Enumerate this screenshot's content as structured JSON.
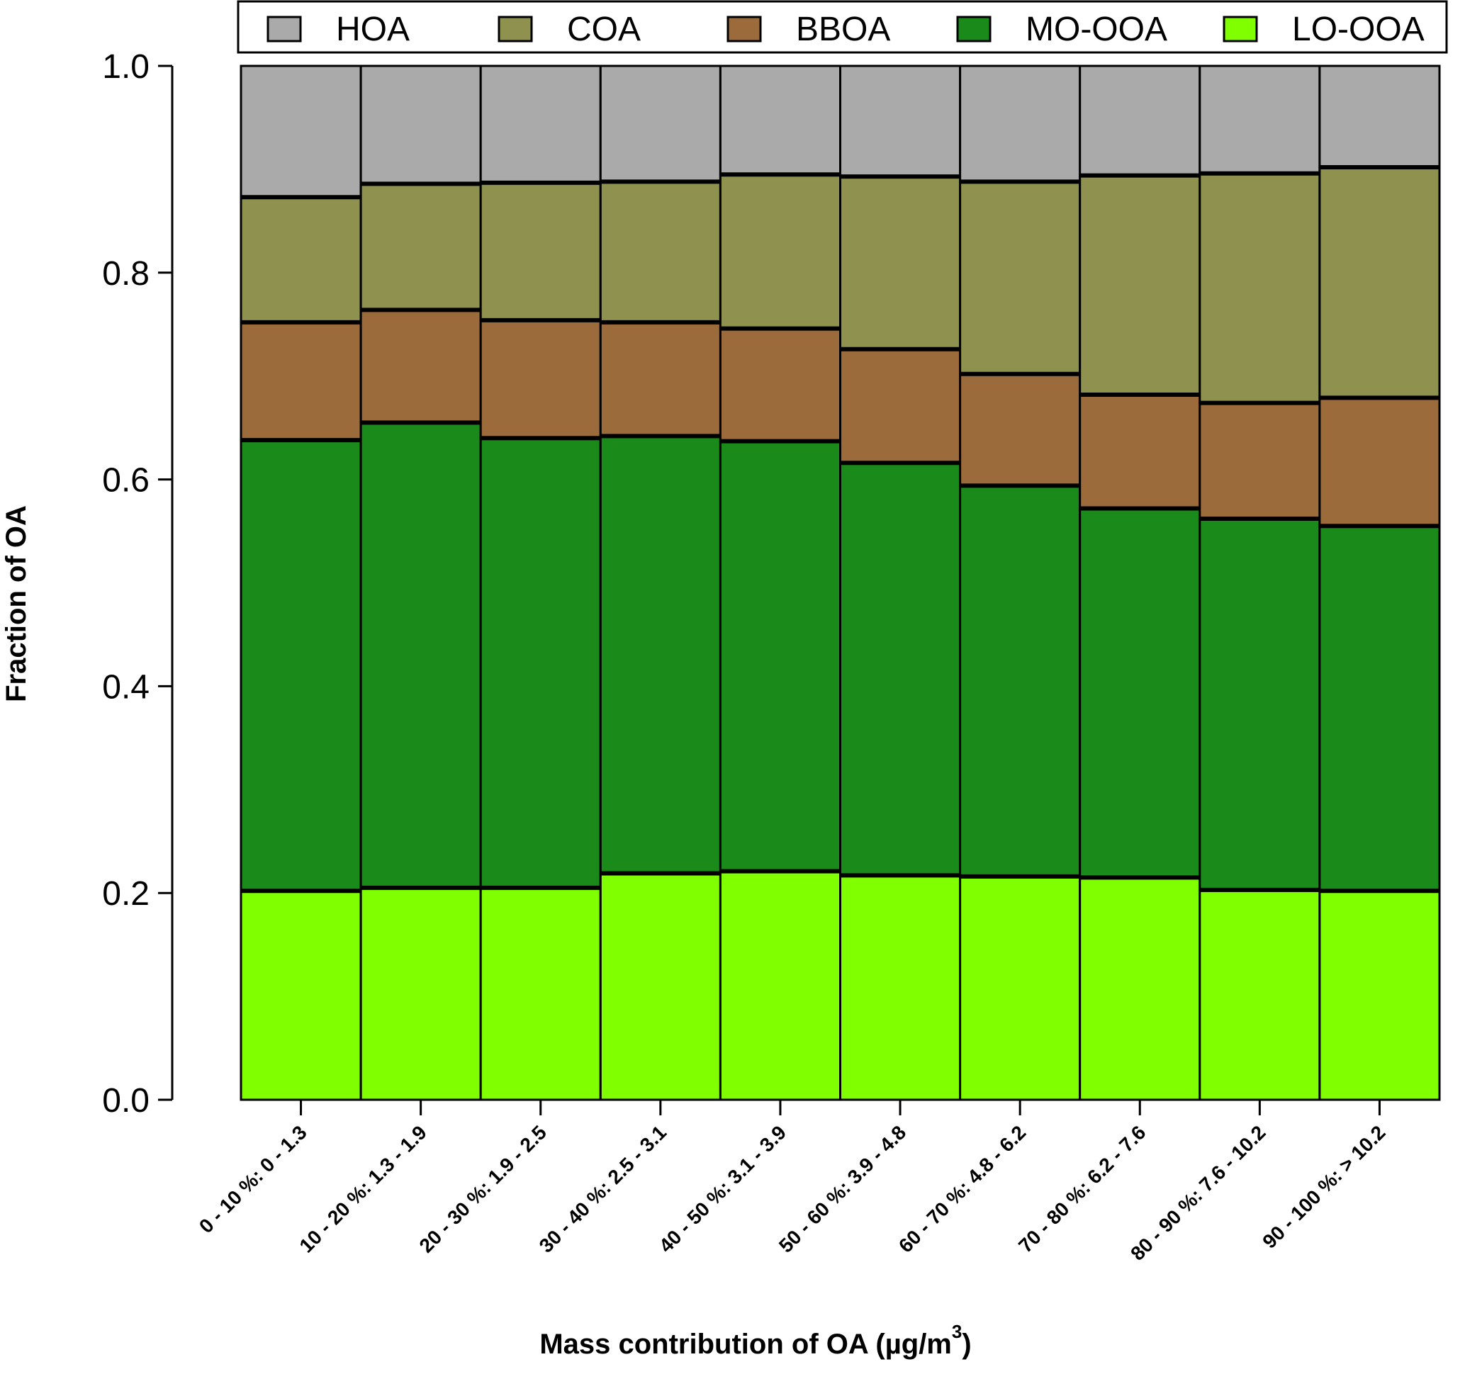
{
  "chart_data": {
    "type": "bar",
    "stacked": true,
    "xlabel": "Mass contribution of OA  (µg/m",
    "xlabel_sup": "3",
    "xlabel_close": ")",
    "ylabel": "Fraction of OA",
    "ylim": [
      0,
      1.0
    ],
    "yticks": [
      "0.0",
      "0.2",
      "0.4",
      "0.6",
      "0.8",
      "1.0"
    ],
    "categories": [
      "0 - 10 %: 0 - 1.3",
      "10 - 20 %: 1.3 - 1.9",
      "20 - 30 %: 1.9 - 2.5",
      "30 - 40 %: 2.5 - 3.1",
      "40 - 50 %: 3.1 - 3.9",
      "50 - 60 %: 3.9 - 4.8",
      "60 - 70 %: 4.8 - 6.2",
      "70 - 80 %: 6.2 - 7.6",
      "80 - 90 %: 7.6 - 10.2",
      "90 - 100 %: > 10.2"
    ],
    "legend_position": "top",
    "series": [
      {
        "name": "LO-OOA",
        "color": "#7fff00",
        "values": [
          0.202,
          0.205,
          0.205,
          0.219,
          0.221,
          0.217,
          0.216,
          0.215,
          0.203,
          0.202
        ]
      },
      {
        "name": "MO-OOA",
        "color": "#1a8a1a",
        "values": [
          0.436,
          0.45,
          0.435,
          0.423,
          0.416,
          0.399,
          0.378,
          0.357,
          0.359,
          0.353
        ]
      },
      {
        "name": "BBOA",
        "color": "#9c6b3c",
        "values": [
          0.114,
          0.109,
          0.114,
          0.11,
          0.109,
          0.11,
          0.108,
          0.11,
          0.112,
          0.124
        ]
      },
      {
        "name": "COA",
        "color": "#8f914e",
        "values": [
          0.121,
          0.122,
          0.133,
          0.136,
          0.149,
          0.167,
          0.186,
          0.212,
          0.222,
          0.223
        ]
      },
      {
        "name": "HOA",
        "color": "#aaaaaa",
        "values": [
          0.127,
          0.114,
          0.113,
          0.112,
          0.105,
          0.107,
          0.112,
          0.106,
          0.104,
          0.098
        ]
      }
    ],
    "legend_order": [
      "HOA",
      "COA",
      "BBOA",
      "MO-OOA",
      "LO-OOA"
    ]
  }
}
